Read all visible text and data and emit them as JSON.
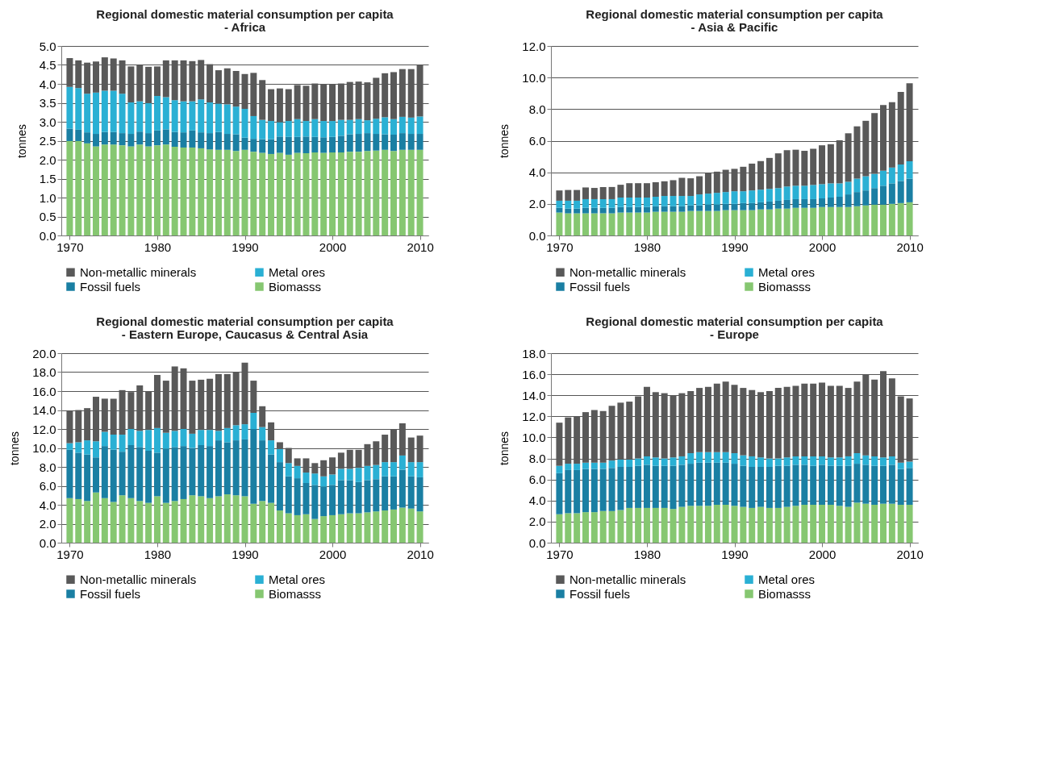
{
  "chart_data": [
    {
      "type": "bar",
      "title": "Regional domestic material consumption per capita",
      "subtitle": "- Africa",
      "ylabel": "tonnes",
      "stacked": true,
      "grid": "y",
      "legend": "bottom",
      "x": [
        1970,
        1971,
        1972,
        1973,
        1974,
        1975,
        1976,
        1977,
        1978,
        1979,
        1980,
        1981,
        1982,
        1983,
        1984,
        1985,
        1986,
        1987,
        1988,
        1989,
        1990,
        1991,
        1992,
        1993,
        1994,
        1995,
        1996,
        1997,
        1998,
        1999,
        2000,
        2001,
        2002,
        2003,
        2004,
        2005,
        2006,
        2007,
        2008,
        2009,
        2010
      ],
      "xlim": [
        1969.5,
        2010.5
      ],
      "xticks": [
        1970,
        1980,
        1990,
        2000,
        2010
      ],
      "ylim": [
        0,
        5
      ],
      "yticks": [
        {
          "value": 0,
          "label": "0.0"
        },
        {
          "value": 0.5,
          "label": "0.5"
        },
        {
          "value": 1,
          "label": "1.0"
        },
        {
          "value": 1.5,
          "label": "1.5"
        },
        {
          "value": 2,
          "label": "2.0"
        },
        {
          "value": 2.5,
          "label": "2.5"
        },
        {
          "value": 3,
          "label": "3.0"
        },
        {
          "value": 3.5,
          "label": "3.5"
        },
        {
          "value": 4,
          "label": "4.0"
        },
        {
          "value": 4.5,
          "label": "4.5"
        },
        {
          "value": 5,
          "label": "5.0"
        }
      ],
      "series": [
        {
          "name": "Biomasss",
          "color": "#86c771",
          "values": [
            2.49,
            2.49,
            2.43,
            2.35,
            2.4,
            2.4,
            2.38,
            2.35,
            2.4,
            2.35,
            2.38,
            2.4,
            2.34,
            2.32,
            2.32,
            2.3,
            2.27,
            2.26,
            2.26,
            2.23,
            2.26,
            2.21,
            2.18,
            2.15,
            2.18,
            2.13,
            2.18,
            2.17,
            2.19,
            2.18,
            2.19,
            2.19,
            2.21,
            2.21,
            2.23,
            2.24,
            2.26,
            2.23,
            2.26,
            2.26,
            2.26
          ]
        },
        {
          "name": "Fossil fuels",
          "color": "#1a7fa3",
          "values": [
            0.33,
            0.3,
            0.29,
            0.33,
            0.33,
            0.33,
            0.32,
            0.33,
            0.34,
            0.35,
            0.39,
            0.4,
            0.39,
            0.4,
            0.45,
            0.42,
            0.43,
            0.47,
            0.42,
            0.44,
            0.32,
            0.34,
            0.36,
            0.39,
            0.43,
            0.47,
            0.42,
            0.44,
            0.41,
            0.41,
            0.41,
            0.44,
            0.46,
            0.47,
            0.47,
            0.44,
            0.41,
            0.43,
            0.44,
            0.42,
            0.42
          ]
        },
        {
          "name": "Metal ores",
          "color": "#2ab0d4",
          "values": [
            1.1,
            1.1,
            1.02,
            1.09,
            1.09,
            1.09,
            1.04,
            0.83,
            0.8,
            0.79,
            0.91,
            0.85,
            0.84,
            0.82,
            0.77,
            0.87,
            0.81,
            0.75,
            0.78,
            0.73,
            0.76,
            0.6,
            0.51,
            0.48,
            0.38,
            0.42,
            0.47,
            0.41,
            0.47,
            0.43,
            0.42,
            0.42,
            0.38,
            0.39,
            0.34,
            0.4,
            0.45,
            0.41,
            0.43,
            0.43,
            0.46
          ]
        },
        {
          "name": "Non-metallic minerals",
          "color": "#595959",
          "values": [
            0.76,
            0.73,
            0.82,
            0.82,
            0.88,
            0.85,
            0.88,
            0.95,
            0.96,
            0.96,
            0.78,
            0.97,
            1.05,
            1.08,
            1.06,
            1.04,
            1.01,
            0.88,
            0.95,
            0.94,
            0.92,
            1.14,
            1.05,
            0.84,
            0.89,
            0.84,
            0.9,
            0.93,
            0.94,
            0.98,
            0.98,
            0.96,
            1.0,
            0.99,
            1.0,
            1.08,
            1.16,
            1.24,
            1.26,
            1.28,
            1.37
          ]
        }
      ]
    },
    {
      "type": "bar",
      "title": "Regional domestic material consumption per capita",
      "subtitle": "- Asia & Pacific",
      "ylabel": "tonnes",
      "stacked": true,
      "grid": "y",
      "legend": "bottom",
      "x": [
        1970,
        1971,
        1972,
        1973,
        1974,
        1975,
        1976,
        1977,
        1978,
        1979,
        1980,
        1981,
        1982,
        1983,
        1984,
        1985,
        1986,
        1987,
        1988,
        1989,
        1990,
        1991,
        1992,
        1993,
        1994,
        1995,
        1996,
        1997,
        1998,
        1999,
        2000,
        2001,
        2002,
        2003,
        2004,
        2005,
        2006,
        2007,
        2008,
        2009,
        2010
      ],
      "xlim": [
        1969.5,
        2010.5
      ],
      "xticks": [
        1970,
        1980,
        1990,
        2000,
        2010
      ],
      "ylim": [
        0,
        12
      ],
      "yticks": [
        {
          "value": 0,
          "label": "0.0"
        },
        {
          "value": 2,
          "label": "2.0"
        },
        {
          "value": 4,
          "label": "4.0"
        },
        {
          "value": 6,
          "label": "6.0"
        },
        {
          "value": 8,
          "label": "8.0"
        },
        {
          "value": 10,
          "label": "10.0"
        },
        {
          "value": 12,
          "label": "12.0"
        }
      ],
      "series": [
        {
          "name": "Biomasss",
          "color": "#86c771",
          "values": [
            1.45,
            1.4,
            1.4,
            1.4,
            1.4,
            1.4,
            1.4,
            1.45,
            1.45,
            1.45,
            1.45,
            1.5,
            1.5,
            1.5,
            1.5,
            1.55,
            1.55,
            1.55,
            1.55,
            1.6,
            1.6,
            1.6,
            1.6,
            1.65,
            1.65,
            1.7,
            1.7,
            1.75,
            1.75,
            1.75,
            1.8,
            1.8,
            1.8,
            1.8,
            1.85,
            1.9,
            1.95,
            1.95,
            2.0,
            2.05,
            2.1
          ]
        },
        {
          "name": "Fossil fuels",
          "color": "#1a7fa3",
          "values": [
            0.3,
            0.3,
            0.3,
            0.35,
            0.35,
            0.35,
            0.35,
            0.35,
            0.35,
            0.35,
            0.35,
            0.35,
            0.35,
            0.35,
            0.35,
            0.35,
            0.35,
            0.4,
            0.4,
            0.4,
            0.4,
            0.45,
            0.45,
            0.45,
            0.5,
            0.5,
            0.55,
            0.55,
            0.55,
            0.55,
            0.55,
            0.6,
            0.65,
            0.8,
            0.9,
            0.95,
            1.05,
            1.2,
            1.3,
            1.4,
            1.5
          ]
        },
        {
          "name": "Metal ores",
          "color": "#2ab0d4",
          "values": [
            0.45,
            0.5,
            0.5,
            0.55,
            0.55,
            0.55,
            0.55,
            0.6,
            0.6,
            0.6,
            0.6,
            0.6,
            0.65,
            0.65,
            0.65,
            0.6,
            0.7,
            0.7,
            0.75,
            0.75,
            0.8,
            0.75,
            0.8,
            0.8,
            0.8,
            0.8,
            0.85,
            0.85,
            0.85,
            0.9,
            0.9,
            0.9,
            0.85,
            0.8,
            0.85,
            0.9,
            0.9,
            0.95,
            1.0,
            1.05,
            1.1
          ]
        },
        {
          "name": "Non-metallic minerals",
          "color": "#595959",
          "values": [
            0.65,
            0.68,
            0.68,
            0.74,
            0.71,
            0.77,
            0.77,
            0.81,
            0.91,
            0.91,
            0.91,
            0.92,
            0.93,
            1.0,
            1.15,
            1.12,
            1.15,
            1.29,
            1.34,
            1.41,
            1.42,
            1.55,
            1.7,
            1.81,
            1.96,
            2.2,
            2.3,
            2.28,
            2.21,
            2.29,
            2.46,
            2.48,
            2.73,
            3.07,
            3.31,
            3.51,
            3.85,
            4.16,
            4.14,
            4.59,
            4.94
          ]
        }
      ]
    },
    {
      "type": "bar",
      "title": "Regional domestic material consumption per capita",
      "subtitle": "- Eastern Europe, Caucasus & Central Asia",
      "ylabel": "tonnes",
      "stacked": true,
      "grid": "y",
      "legend": "bottom",
      "x": [
        1970,
        1971,
        1972,
        1973,
        1974,
        1975,
        1976,
        1977,
        1978,
        1979,
        1980,
        1981,
        1982,
        1983,
        1984,
        1985,
        1986,
        1987,
        1988,
        1989,
        1990,
        1991,
        1992,
        1993,
        1994,
        1995,
        1996,
        1997,
        1998,
        1999,
        2000,
        2001,
        2002,
        2003,
        2004,
        2005,
        2006,
        2007,
        2008,
        2009,
        2010
      ],
      "xlim": [
        1969.5,
        2010.5
      ],
      "xticks": [
        1970,
        1980,
        1990,
        2000,
        2010
      ],
      "ylim": [
        0,
        20
      ],
      "yticks": [
        {
          "value": 0,
          "label": "0.0"
        },
        {
          "value": 2,
          "label": "2.0"
        },
        {
          "value": 4,
          "label": "4.0"
        },
        {
          "value": 6,
          "label": "6.0"
        },
        {
          "value": 8,
          "label": "8.0"
        },
        {
          "value": 10,
          "label": "10.0"
        },
        {
          "value": 12,
          "label": "12.0"
        },
        {
          "value": 14,
          "label": "14.0"
        },
        {
          "value": 16,
          "label": "16.0"
        },
        {
          "value": 18,
          "label": "18.0"
        },
        {
          "value": 20,
          "label": "20.0"
        }
      ],
      "series": [
        {
          "name": "Biomasss",
          "color": "#86c771",
          "values": [
            4.7,
            4.6,
            4.4,
            5.3,
            4.7,
            4.3,
            5.0,
            4.7,
            4.4,
            4.2,
            4.9,
            4.2,
            4.4,
            4.6,
            5.0,
            4.9,
            4.7,
            4.9,
            5.1,
            5.0,
            4.9,
            4.1,
            4.4,
            4.2,
            3.4,
            3.1,
            2.9,
            3.0,
            2.5,
            2.8,
            2.9,
            3.0,
            3.1,
            3.1,
            3.2,
            3.3,
            3.4,
            3.5,
            3.7,
            3.6,
            3.3
          ]
        },
        {
          "name": "Fossil fuels",
          "color": "#1a7fa3",
          "values": [
            5.1,
            4.9,
            4.9,
            3.7,
            5.5,
            5.5,
            4.6,
            5.6,
            5.7,
            5.5,
            4.6,
            5.7,
            5.7,
            5.6,
            5.0,
            5.4,
            5.5,
            5.9,
            5.5,
            5.8,
            6.0,
            7.9,
            6.4,
            5.1,
            5.1,
            3.9,
            3.9,
            3.3,
            3.6,
            3.1,
            3.2,
            3.6,
            3.5,
            3.3,
            3.4,
            3.4,
            3.6,
            3.5,
            4.0,
            3.4,
            3.6
          ]
        },
        {
          "name": "Metal ores",
          "color": "#2ab0d4",
          "values": [
            0.7,
            1.1,
            1.5,
            1.7,
            1.5,
            1.6,
            1.8,
            1.7,
            1.7,
            2.2,
            2.6,
            1.7,
            1.7,
            1.8,
            1.5,
            1.6,
            1.7,
            1.0,
            1.5,
            1.6,
            1.6,
            1.7,
            1.4,
            1.5,
            1.4,
            1.4,
            1.3,
            1.1,
            1.2,
            1.1,
            1.1,
            1.2,
            1.2,
            1.5,
            1.5,
            1.5,
            1.5,
            1.5,
            1.5,
            1.5,
            1.6
          ]
        },
        {
          "name": "Non-metallic minerals",
          "color": "#595959",
          "values": [
            3.4,
            3.4,
            3.4,
            4.7,
            3.5,
            3.8,
            4.7,
            3.9,
            4.8,
            4.1,
            5.6,
            5.5,
            6.8,
            6.4,
            5.6,
            5.3,
            5.4,
            6.0,
            5.7,
            5.6,
            6.5,
            3.4,
            2.2,
            1.9,
            0.7,
            1.6,
            0.8,
            1.5,
            1.1,
            1.7,
            1.8,
            1.7,
            2.0,
            1.9,
            2.3,
            2.5,
            2.9,
            3.5,
            3.4,
            2.6,
            2.8
          ]
        }
      ]
    },
    {
      "type": "bar",
      "title": "Regional domestic material consumption per capita",
      "subtitle": "- Europe",
      "ylabel": "tonnes",
      "stacked": true,
      "grid": "y",
      "legend": "bottom",
      "x": [
        1970,
        1971,
        1972,
        1973,
        1974,
        1975,
        1976,
        1977,
        1978,
        1979,
        1980,
        1981,
        1982,
        1983,
        1984,
        1985,
        1986,
        1987,
        1988,
        1989,
        1990,
        1991,
        1992,
        1993,
        1994,
        1995,
        1996,
        1997,
        1998,
        1999,
        2000,
        2001,
        2002,
        2003,
        2004,
        2005,
        2006,
        2007,
        2008,
        2009,
        2010
      ],
      "xlim": [
        1969.5,
        2010.5
      ],
      "xticks": [
        1970,
        1980,
        1990,
        2000,
        2010
      ],
      "ylim": [
        0,
        18
      ],
      "yticks": [
        {
          "value": 0,
          "label": "0.0"
        },
        {
          "value": 2,
          "label": "2.0"
        },
        {
          "value": 4,
          "label": "4.0"
        },
        {
          "value": 6,
          "label": "6.0"
        },
        {
          "value": 8,
          "label": "8.0"
        },
        {
          "value": 10,
          "label": "10.0"
        },
        {
          "value": 12,
          "label": "12.0"
        },
        {
          "value": 14,
          "label": "14.0"
        },
        {
          "value": 16,
          "label": "16.0"
        },
        {
          "value": 18,
          "label": "18.0"
        }
      ],
      "series": [
        {
          "name": "Biomasss",
          "color": "#86c771",
          "values": [
            2.7,
            2.8,
            2.8,
            2.9,
            2.9,
            3.0,
            3.0,
            3.1,
            3.3,
            3.3,
            3.3,
            3.3,
            3.3,
            3.2,
            3.4,
            3.5,
            3.5,
            3.5,
            3.6,
            3.6,
            3.5,
            3.4,
            3.3,
            3.4,
            3.3,
            3.3,
            3.4,
            3.5,
            3.6,
            3.6,
            3.6,
            3.6,
            3.5,
            3.4,
            3.8,
            3.7,
            3.6,
            3.7,
            3.7,
            3.6,
            3.6
          ]
        },
        {
          "name": "Fossil fuels",
          "color": "#1a7fa3",
          "values": [
            3.9,
            4.1,
            4.1,
            4.1,
            4.1,
            4.0,
            4.1,
            4.1,
            3.9,
            4.0,
            4.1,
            4.0,
            4.0,
            4.1,
            4.0,
            4.0,
            4.1,
            4.1,
            4.0,
            4.0,
            4.0,
            3.9,
            3.9,
            3.8,
            3.9,
            4.0,
            3.9,
            3.9,
            3.8,
            3.7,
            3.8,
            3.7,
            3.8,
            3.9,
            3.7,
            3.7,
            3.7,
            3.6,
            3.7,
            3.4,
            3.5
          ]
        },
        {
          "name": "Metal ores",
          "color": "#2ab0d4",
          "values": [
            0.7,
            0.6,
            0.6,
            0.6,
            0.6,
            0.6,
            0.7,
            0.7,
            0.7,
            0.7,
            0.8,
            0.8,
            0.7,
            0.8,
            0.8,
            1.0,
            1.0,
            1.0,
            1.0,
            1.0,
            1.0,
            1.0,
            1.0,
            0.9,
            0.8,
            0.7,
            0.8,
            0.8,
            0.8,
            0.9,
            0.8,
            0.8,
            0.8,
            0.9,
            1.0,
            0.9,
            0.9,
            0.8,
            0.8,
            0.6,
            0.6
          ]
        },
        {
          "name": "Non-metallic minerals",
          "color": "#595959",
          "values": [
            4.1,
            4.4,
            4.5,
            4.8,
            5.0,
            4.9,
            5.2,
            5.4,
            5.5,
            5.9,
            6.6,
            6.2,
            6.2,
            5.9,
            6.0,
            5.9,
            6.1,
            6.2,
            6.5,
            6.7,
            6.5,
            6.4,
            6.3,
            6.2,
            6.4,
            6.7,
            6.7,
            6.7,
            6.9,
            6.9,
            7.0,
            6.8,
            6.8,
            6.5,
            6.8,
            7.7,
            7.3,
            8.2,
            7.4,
            6.3,
            6.0
          ]
        }
      ]
    }
  ]
}
